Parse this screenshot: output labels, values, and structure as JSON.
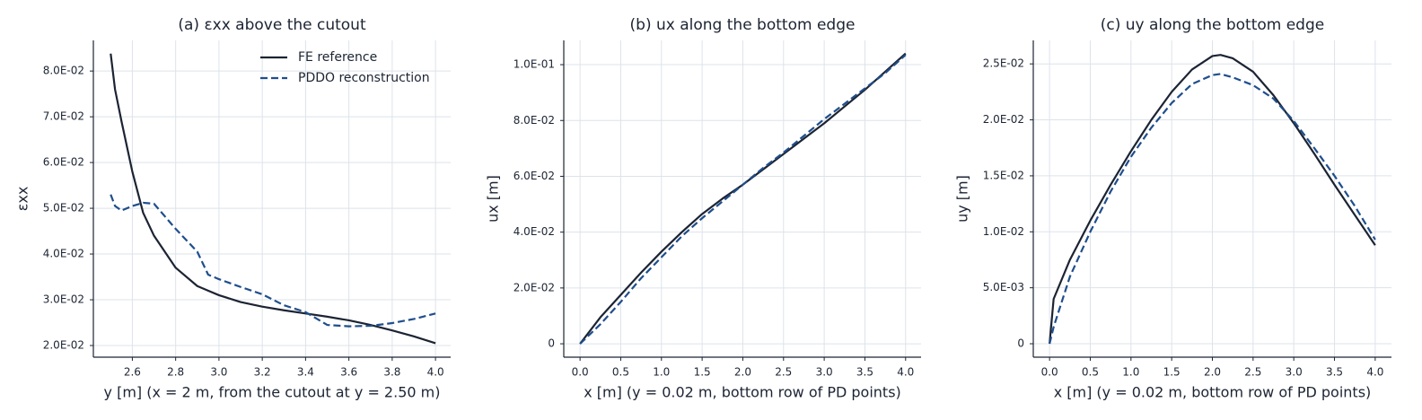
{
  "chart_data": [
    {
      "type": "line",
      "title": "(a) εxx above the cutout",
      "xlabel": "y [m]  (x = 2 m, from the cutout at y = 2.50 m)",
      "ylabel": "εxx",
      "x": [
        2.5,
        2.52,
        2.55,
        2.6,
        2.65,
        2.7,
        2.8,
        2.9,
        2.95,
        3.0,
        3.1,
        3.2,
        3.3,
        3.4,
        3.5,
        3.6,
        3.7,
        3.8,
        3.9,
        4.0
      ],
      "series": [
        {
          "name": "FE reference",
          "color": "#1c2433",
          "linestyle": "solid",
          "values": [
            0.0838,
            0.076,
            0.069,
            0.058,
            0.049,
            0.044,
            0.037,
            0.033,
            0.032,
            0.031,
            0.0295,
            0.0285,
            0.0277,
            0.027,
            0.0263,
            0.0255,
            0.0245,
            0.0233,
            0.022,
            0.0205
          ]
        },
        {
          "name": "PDDO reconstruction",
          "color": "#1f4e8c",
          "linestyle": "dashed",
          "values": [
            0.053,
            0.0505,
            0.0495,
            0.0505,
            0.0512,
            0.051,
            0.0455,
            0.0405,
            0.0355,
            0.0345,
            0.0328,
            0.0312,
            0.0288,
            0.0273,
            0.0245,
            0.0242,
            0.0243,
            0.0249,
            0.0258,
            0.027
          ]
        }
      ],
      "xlim": [
        2.42,
        4.07
      ],
      "ylim": [
        0.01745,
        0.0867
      ],
      "xticks": [
        2.6,
        2.8,
        {
          "value": 3,
          "label": "3.0"
        },
        3.2,
        3.4,
        3.6,
        3.8,
        {
          "value": 4,
          "label": "4.0"
        }
      ],
      "yticks": [
        {
          "value": 0.02,
          "label": "2.0E-02"
        },
        {
          "value": 0.03,
          "label": "3.0E-02"
        },
        {
          "value": 0.04,
          "label": "4.0E-02"
        },
        {
          "value": 0.05,
          "label": "5.0E-02"
        },
        {
          "value": 0.06,
          "label": "6.0E-02"
        },
        {
          "value": 0.07,
          "label": "7.0E-02"
        },
        {
          "value": 0.08,
          "label": "8.0E-02"
        }
      ],
      "grid": true,
      "legend": "upper right"
    },
    {
      "type": "line",
      "title": "(b) ux along the bottom edge",
      "xlabel": "x [m]  (y = 0.02 m, bottom row of PD points)",
      "ylabel": "ux [m]",
      "x": [
        0,
        0.25,
        0.5,
        0.75,
        1,
        1.25,
        1.5,
        1.75,
        2,
        2.25,
        2.5,
        2.75,
        3,
        3.25,
        3.5,
        3.75,
        4
      ],
      "series": [
        {
          "color": "#1c2433",
          "linestyle": "solid",
          "values": [
            0,
            0.0095,
            0.0175,
            0.0255,
            0.033,
            0.04,
            0.0465,
            0.052,
            0.057,
            0.0625,
            0.068,
            0.0735,
            0.079,
            0.085,
            0.091,
            0.0975,
            0.104
          ]
        },
        {
          "color": "#1f4e8c",
          "linestyle": "dashed",
          "values": [
            0,
            0.007,
            0.015,
            0.0235,
            0.031,
            0.0385,
            0.045,
            0.051,
            0.057,
            0.063,
            0.0685,
            0.0745,
            0.0805,
            0.086,
            0.0915,
            0.097,
            0.1035
          ]
        }
      ],
      "xlim": [
        -0.2,
        4.19
      ],
      "ylim": [
        -0.0048,
        0.1087
      ],
      "xticks": [
        {
          "value": 0,
          "label": "0.0"
        },
        0.5,
        {
          "value": 1,
          "label": "1.0"
        },
        1.5,
        {
          "value": 2,
          "label": "2.0"
        },
        2.5,
        {
          "value": 3,
          "label": "3.0"
        },
        3.5,
        {
          "value": 4,
          "label": "4.0"
        }
      ],
      "yticks": [
        0,
        {
          "value": 0.02,
          "label": "2.0E-02"
        },
        {
          "value": 0.04,
          "label": "4.0E-02"
        },
        {
          "value": 0.06,
          "label": "6.0E-02"
        },
        {
          "value": 0.08,
          "label": "8.0E-02"
        },
        {
          "value": 0.1,
          "label": "1.0E-01"
        }
      ],
      "grid": true
    },
    {
      "type": "line",
      "title": "(c) uy along the bottom edge",
      "xlabel": "x [m]  (y = 0.02 m, bottom row of PD points)",
      "ylabel": "uy [m]",
      "x": [
        0,
        0.05,
        0.25,
        0.5,
        0.75,
        1,
        1.25,
        1.5,
        1.75,
        2,
        2.1,
        2.25,
        2.5,
        2.75,
        3,
        3.25,
        3.5,
        3.75,
        4
      ],
      "series": [
        {
          "color": "#1c2433",
          "linestyle": "solid",
          "values": [
            0,
            0.004,
            0.0075,
            0.011,
            0.0142,
            0.0172,
            0.02,
            0.0225,
            0.0245,
            0.0257,
            0.0258,
            0.0255,
            0.0243,
            0.0222,
            0.0197,
            0.017,
            0.0142,
            0.0115,
            0.0088
          ]
        },
        {
          "color": "#1f4e8c",
          "linestyle": "dashed",
          "values": [
            0,
            0.0015,
            0.006,
            0.01,
            0.0136,
            0.0167,
            0.0193,
            0.0215,
            0.0232,
            0.024,
            0.0241,
            0.0238,
            0.0231,
            0.0219,
            0.0199,
            0.0175,
            0.015,
            0.0123,
            0.0093
          ]
        }
      ],
      "xlim": [
        -0.2,
        4.2
      ],
      "ylim": [
        -0.0012,
        0.0271
      ],
      "xticks": [
        {
          "value": 0,
          "label": "0.0"
        },
        0.5,
        {
          "value": 1,
          "label": "1.0"
        },
        1.5,
        {
          "value": 2,
          "label": "2.0"
        },
        2.5,
        {
          "value": 3,
          "label": "3.0"
        },
        3.5,
        {
          "value": 4,
          "label": "4.0"
        }
      ],
      "yticks": [
        0,
        {
          "value": 0.005,
          "label": "5.0E-03"
        },
        {
          "value": 0.01,
          "label": "1.0E-02"
        },
        {
          "value": 0.015,
          "label": "1.5E-02"
        },
        {
          "value": 0.02,
          "label": "2.0E-02"
        },
        {
          "value": 0.025,
          "label": "2.5E-02"
        }
      ],
      "grid": true
    }
  ]
}
